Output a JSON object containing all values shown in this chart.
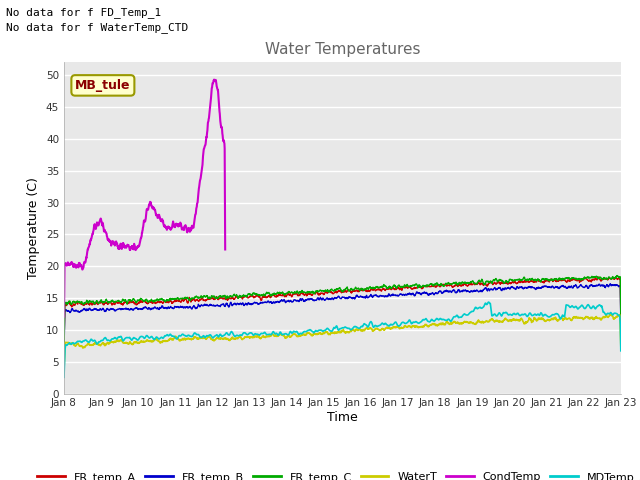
{
  "title": "Water Temperatures",
  "xlabel": "Time",
  "ylabel": "Temperature (C)",
  "note_line1": "No data for f FD_Temp_1",
  "note_line2": "No data for f WaterTemp_CTD",
  "annotation": "MB_tule",
  "ylim": [
    0,
    52
  ],
  "yticks": [
    0,
    5,
    10,
    15,
    20,
    25,
    30,
    35,
    40,
    45,
    50
  ],
  "x_labels": [
    "Jan 8",
    "Jan 9",
    "Jan 10",
    "Jan 11",
    "Jan 12",
    "Jan 13",
    "Jan 14",
    "Jan 15",
    "Jan 16",
    "Jan 17",
    "Jan 18",
    "Jan 19",
    "Jan 20",
    "Jan 21",
    "Jan 22",
    "Jan 23"
  ],
  "background_color": "#e8e8e8",
  "grid_color": "#ffffff",
  "legend_entries": [
    {
      "label": "FR_temp_A",
      "color": "#cc0000"
    },
    {
      "label": "FR_temp_B",
      "color": "#0000cc"
    },
    {
      "label": "FR_temp_C",
      "color": "#00aa00"
    },
    {
      "label": "WaterT",
      "color": "#cccc00"
    },
    {
      "label": "CondTemp",
      "color": "#cc00cc"
    },
    {
      "label": "MDTemp_A",
      "color": "#00cccc"
    }
  ]
}
